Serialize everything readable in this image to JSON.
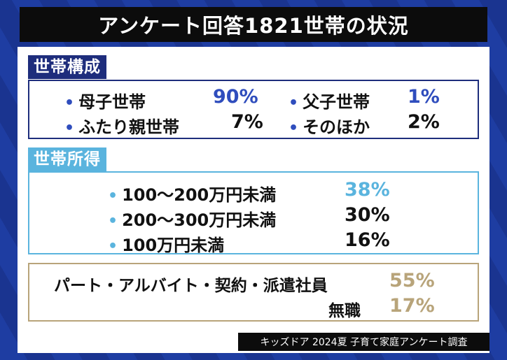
{
  "title": "アンケート回答1821世帯の状況",
  "colors": {
    "navy": "#1e2d7c",
    "blue": "#2f4dbd",
    "light_blue": "#5ab4de",
    "gold": "#b8a47a",
    "text": "#111111"
  },
  "household_composition": {
    "label": "世帯構成",
    "items": [
      {
        "name": "母子世帯",
        "value": "90%"
      },
      {
        "name": "父子世帯",
        "value": "1%"
      },
      {
        "name": "ふたり親世帯",
        "value": "7%"
      },
      {
        "name": "そのほか",
        "value": "2%"
      }
    ]
  },
  "household_income": {
    "label": "世帯所得",
    "items": [
      {
        "name": "100～200万円未満",
        "value": "38%"
      },
      {
        "name": "200～300万円未満",
        "value": "30%"
      },
      {
        "name": "100万円未満",
        "value": "16%"
      }
    ]
  },
  "employment": {
    "items": [
      {
        "name": "パート・アルバイト・契約・派遣社員",
        "value": "55%"
      },
      {
        "name": "無職",
        "value": "17%"
      }
    ]
  },
  "source": "キッズドア 2024夏 子育て家庭アンケート調査",
  "bullet": "•"
}
